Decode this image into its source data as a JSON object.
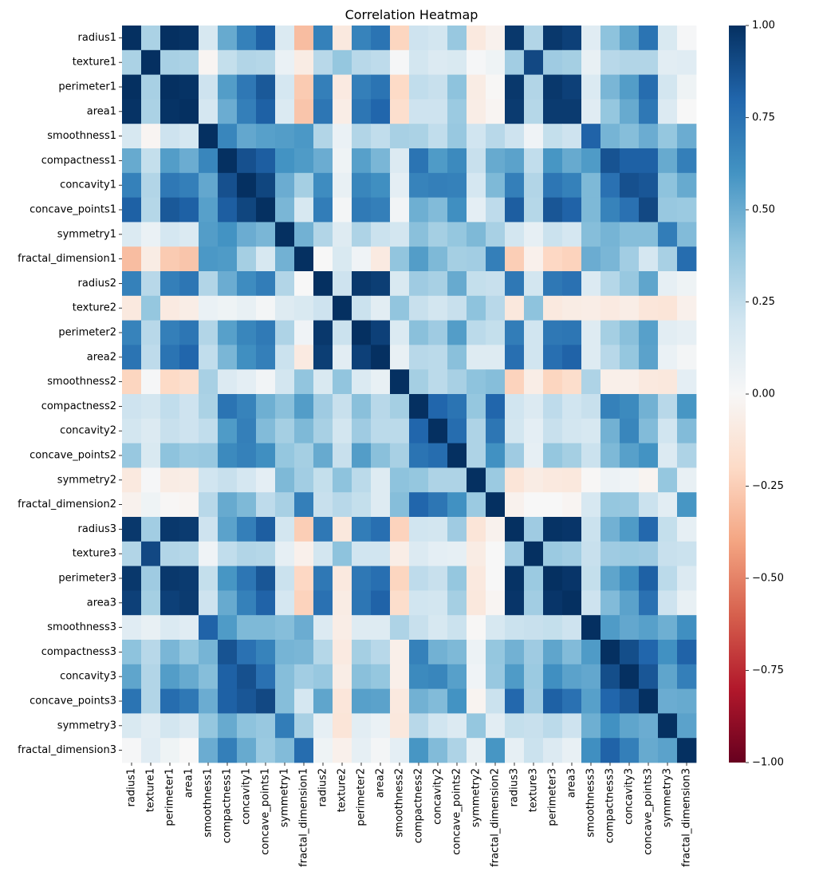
{
  "chart_data": {
    "type": "heatmap",
    "title": "Correlation Heatmap",
    "xlabel": "",
    "ylabel": "",
    "colormap": "RdBu",
    "vmin": -1.0,
    "vmax": 1.0,
    "colorbar_ticks": [
      1.0,
      0.75,
      0.5,
      0.25,
      0.0,
      -0.25,
      -0.5,
      -0.75,
      -1.0
    ],
    "colorbar_tick_labels": [
      "1.00",
      "0.75",
      "0.50",
      "0.25",
      "0.00",
      "−0.25",
      "−0.50",
      "−0.75",
      "−1.00"
    ],
    "labels": [
      "radius1",
      "texture1",
      "perimeter1",
      "area1",
      "smoothness1",
      "compactness1",
      "concavity1",
      "concave_points1",
      "symmetry1",
      "fractal_dimension1",
      "radius2",
      "texture2",
      "perimeter2",
      "area2",
      "smoothness2",
      "compactness2",
      "concavity2",
      "concave_points2",
      "symmetry2",
      "fractal_dimension2",
      "radius3",
      "texture3",
      "perimeter3",
      "area3",
      "smoothness3",
      "compactness3",
      "concavity3",
      "concave_points3",
      "symmetry3",
      "fractal_dimension3"
    ],
    "matrix": [
      [
        1.0,
        0.32,
        1.0,
        0.99,
        0.17,
        0.51,
        0.68,
        0.82,
        0.15,
        -0.31,
        0.68,
        -0.1,
        0.67,
        0.74,
        -0.22,
        0.21,
        0.19,
        0.38,
        -0.1,
        -0.04,
        0.97,
        0.3,
        0.97,
        0.94,
        0.12,
        0.41,
        0.53,
        0.74,
        0.16,
        0.01
      ],
      [
        0.32,
        1.0,
        0.33,
        0.32,
        -0.02,
        0.24,
        0.3,
        0.29,
        0.07,
        -0.08,
        0.28,
        0.39,
        0.28,
        0.26,
        0.01,
        0.19,
        0.14,
        0.16,
        0.01,
        0.05,
        0.35,
        0.91,
        0.36,
        0.34,
        0.08,
        0.28,
        0.3,
        0.3,
        0.11,
        0.12
      ],
      [
        1.0,
        0.33,
        1.0,
        0.99,
        0.21,
        0.56,
        0.72,
        0.85,
        0.18,
        -0.26,
        0.69,
        -0.09,
        0.69,
        0.74,
        -0.2,
        0.25,
        0.23,
        0.41,
        -0.08,
        -0.01,
        0.97,
        0.3,
        0.97,
        0.94,
        0.15,
        0.46,
        0.56,
        0.77,
        0.19,
        0.05
      ],
      [
        0.99,
        0.32,
        0.99,
        1.0,
        0.18,
        0.5,
        0.69,
        0.82,
        0.15,
        -0.28,
        0.73,
        -0.07,
        0.73,
        0.8,
        -0.17,
        0.21,
        0.21,
        0.37,
        -0.07,
        -0.02,
        0.96,
        0.29,
        0.96,
        0.96,
        0.12,
        0.39,
        0.51,
        0.72,
        0.14,
        0.0
      ],
      [
        0.17,
        -0.02,
        0.21,
        0.18,
        1.0,
        0.66,
        0.52,
        0.55,
        0.56,
        0.58,
        0.3,
        0.07,
        0.3,
        0.25,
        0.33,
        0.32,
        0.25,
        0.38,
        0.2,
        0.28,
        0.21,
        0.04,
        0.24,
        0.21,
        0.81,
        0.47,
        0.43,
        0.5,
        0.39,
        0.5
      ],
      [
        0.51,
        0.24,
        0.56,
        0.5,
        0.66,
        1.0,
        0.88,
        0.83,
        0.6,
        0.57,
        0.5,
        0.05,
        0.55,
        0.46,
        0.14,
        0.74,
        0.57,
        0.64,
        0.23,
        0.51,
        0.54,
        0.25,
        0.59,
        0.51,
        0.57,
        0.87,
        0.82,
        0.82,
        0.51,
        0.69
      ],
      [
        0.68,
        0.3,
        0.72,
        0.69,
        0.52,
        0.88,
        1.0,
        0.92,
        0.5,
        0.34,
        0.63,
        0.08,
        0.66,
        0.62,
        0.1,
        0.67,
        0.69,
        0.68,
        0.18,
        0.45,
        0.69,
        0.3,
        0.73,
        0.68,
        0.45,
        0.75,
        0.88,
        0.86,
        0.41,
        0.51
      ],
      [
        0.82,
        0.29,
        0.85,
        0.82,
        0.55,
        0.83,
        0.92,
        1.0,
        0.46,
        0.17,
        0.7,
        0.02,
        0.71,
        0.69,
        0.03,
        0.49,
        0.44,
        0.62,
        0.1,
        0.26,
        0.83,
        0.29,
        0.86,
        0.81,
        0.45,
        0.67,
        0.75,
        0.91,
        0.38,
        0.37
      ],
      [
        0.15,
        0.07,
        0.18,
        0.15,
        0.56,
        0.6,
        0.5,
        0.46,
        1.0,
        0.48,
        0.3,
        0.13,
        0.31,
        0.22,
        0.19,
        0.42,
        0.34,
        0.39,
        0.45,
        0.33,
        0.19,
        0.09,
        0.22,
        0.18,
        0.43,
        0.47,
        0.43,
        0.43,
        0.7,
        0.44
      ],
      [
        -0.31,
        -0.08,
        -0.26,
        -0.28,
        0.58,
        0.57,
        0.34,
        0.17,
        0.48,
        1.0,
        0.0,
        0.16,
        0.04,
        -0.09,
        0.4,
        0.56,
        0.45,
        0.34,
        0.35,
        0.69,
        -0.25,
        -0.05,
        -0.21,
        -0.23,
        0.5,
        0.46,
        0.35,
        0.18,
        0.33,
        0.77
      ],
      [
        0.68,
        0.28,
        0.69,
        0.73,
        0.3,
        0.5,
        0.63,
        0.7,
        0.3,
        0.0,
        1.0,
        0.21,
        0.97,
        0.95,
        0.16,
        0.36,
        0.33,
        0.51,
        0.24,
        0.23,
        0.72,
        0.19,
        0.72,
        0.75,
        0.14,
        0.29,
        0.38,
        0.53,
        0.09,
        0.05
      ],
      [
        -0.1,
        0.39,
        -0.09,
        -0.07,
        0.07,
        0.05,
        0.08,
        0.02,
        0.13,
        0.16,
        0.21,
        1.0,
        0.22,
        0.11,
        0.4,
        0.23,
        0.19,
        0.23,
        0.41,
        0.28,
        -0.11,
        0.41,
        -0.1,
        -0.08,
        -0.07,
        -0.09,
        -0.07,
        -0.12,
        -0.13,
        -0.05
      ],
      [
        0.67,
        0.28,
        0.69,
        0.73,
        0.3,
        0.55,
        0.66,
        0.71,
        0.31,
        0.04,
        0.97,
        0.22,
        1.0,
        0.94,
        0.15,
        0.42,
        0.36,
        0.56,
        0.27,
        0.24,
        0.7,
        0.2,
        0.72,
        0.73,
        0.13,
        0.34,
        0.42,
        0.55,
        0.11,
        0.09
      ],
      [
        0.74,
        0.26,
        0.74,
        0.8,
        0.25,
        0.46,
        0.62,
        0.69,
        0.22,
        -0.09,
        0.95,
        0.11,
        0.94,
        1.0,
        0.08,
        0.28,
        0.27,
        0.42,
        0.13,
        0.13,
        0.76,
        0.2,
        0.76,
        0.81,
        0.13,
        0.28,
        0.39,
        0.54,
        0.07,
        0.02
      ],
      [
        -0.22,
        0.01,
        -0.2,
        -0.17,
        0.33,
        0.14,
        0.1,
        0.03,
        0.19,
        0.4,
        0.16,
        0.4,
        0.15,
        0.08,
        1.0,
        0.34,
        0.27,
        0.33,
        0.41,
        0.43,
        -0.23,
        -0.07,
        -0.22,
        -0.18,
        0.31,
        -0.06,
        -0.06,
        -0.1,
        -0.11,
        0.1
      ],
      [
        0.21,
        0.19,
        0.25,
        0.21,
        0.32,
        0.74,
        0.67,
        0.49,
        0.42,
        0.56,
        0.36,
        0.23,
        0.42,
        0.28,
        0.34,
        1.0,
        0.8,
        0.74,
        0.39,
        0.8,
        0.2,
        0.14,
        0.26,
        0.2,
        0.23,
        0.68,
        0.64,
        0.48,
        0.28,
        0.59
      ],
      [
        0.19,
        0.14,
        0.23,
        0.21,
        0.25,
        0.57,
        0.69,
        0.44,
        0.34,
        0.45,
        0.33,
        0.19,
        0.36,
        0.27,
        0.27,
        0.8,
        1.0,
        0.77,
        0.31,
        0.73,
        0.19,
        0.1,
        0.23,
        0.19,
        0.17,
        0.48,
        0.66,
        0.44,
        0.2,
        0.44
      ],
      [
        0.38,
        0.16,
        0.41,
        0.37,
        0.38,
        0.64,
        0.68,
        0.62,
        0.39,
        0.34,
        0.51,
        0.23,
        0.56,
        0.42,
        0.33,
        0.74,
        0.77,
        1.0,
        0.31,
        0.61,
        0.36,
        0.09,
        0.39,
        0.34,
        0.22,
        0.45,
        0.55,
        0.6,
        0.14,
        0.31
      ],
      [
        -0.1,
        0.01,
        -0.08,
        -0.07,
        0.2,
        0.23,
        0.18,
        0.1,
        0.45,
        0.35,
        0.24,
        0.41,
        0.27,
        0.13,
        0.41,
        0.39,
        0.31,
        0.31,
        1.0,
        0.37,
        -0.13,
        -0.08,
        -0.1,
        -0.11,
        -0.01,
        0.06,
        0.04,
        -0.03,
        0.39,
        0.08
      ],
      [
        -0.04,
        0.05,
        -0.01,
        -0.02,
        0.28,
        0.51,
        0.45,
        0.26,
        0.33,
        0.69,
        0.23,
        0.28,
        0.24,
        0.13,
        0.43,
        0.8,
        0.73,
        0.61,
        0.37,
        1.0,
        -0.04,
        -0.0,
        -0.0,
        -0.02,
        0.17,
        0.39,
        0.38,
        0.22,
        0.11,
        0.59
      ],
      [
        0.97,
        0.35,
        0.97,
        0.96,
        0.21,
        0.54,
        0.69,
        0.83,
        0.19,
        -0.25,
        0.72,
        -0.11,
        0.7,
        0.76,
        -0.23,
        0.2,
        0.19,
        0.36,
        -0.13,
        -0.04,
        1.0,
        0.36,
        0.99,
        0.98,
        0.22,
        0.48,
        0.57,
        0.79,
        0.24,
        0.09
      ],
      [
        0.3,
        0.91,
        0.3,
        0.29,
        0.04,
        0.25,
        0.3,
        0.29,
        0.09,
        -0.05,
        0.19,
        0.41,
        0.2,
        0.2,
        -0.07,
        0.14,
        0.1,
        0.09,
        -0.08,
        -0.0,
        0.36,
        1.0,
        0.37,
        0.35,
        0.23,
        0.36,
        0.37,
        0.36,
        0.23,
        0.22
      ],
      [
        0.97,
        0.36,
        0.97,
        0.96,
        0.24,
        0.59,
        0.73,
        0.86,
        0.22,
        -0.21,
        0.72,
        -0.1,
        0.72,
        0.76,
        -0.22,
        0.26,
        0.23,
        0.39,
        -0.1,
        -0.0,
        0.99,
        0.37,
        1.0,
        0.98,
        0.24,
        0.53,
        0.62,
        0.82,
        0.27,
        0.14
      ],
      [
        0.94,
        0.34,
        0.94,
        0.96,
        0.21,
        0.51,
        0.68,
        0.81,
        0.18,
        -0.23,
        0.75,
        -0.08,
        0.73,
        0.81,
        -0.18,
        0.2,
        0.19,
        0.34,
        -0.11,
        -0.02,
        0.98,
        0.35,
        0.98,
        1.0,
        0.21,
        0.44,
        0.54,
        0.75,
        0.21,
        0.08
      ],
      [
        0.12,
        0.08,
        0.15,
        0.12,
        0.81,
        0.57,
        0.45,
        0.45,
        0.43,
        0.5,
        0.14,
        -0.07,
        0.13,
        0.13,
        0.31,
        0.23,
        0.17,
        0.22,
        -0.01,
        0.17,
        0.22,
        0.23,
        0.24,
        0.21,
        1.0,
        0.57,
        0.52,
        0.55,
        0.49,
        0.62
      ],
      [
        0.41,
        0.28,
        0.46,
        0.39,
        0.47,
        0.87,
        0.75,
        0.67,
        0.47,
        0.46,
        0.29,
        -0.09,
        0.34,
        0.28,
        -0.06,
        0.68,
        0.48,
        0.45,
        0.06,
        0.39,
        0.48,
        0.36,
        0.53,
        0.44,
        0.57,
        1.0,
        0.89,
        0.8,
        0.61,
        0.81
      ],
      [
        0.53,
        0.3,
        0.56,
        0.51,
        0.43,
        0.82,
        0.88,
        0.75,
        0.43,
        0.35,
        0.38,
        -0.07,
        0.42,
        0.39,
        -0.06,
        0.64,
        0.66,
        0.55,
        0.04,
        0.38,
        0.57,
        0.37,
        0.62,
        0.54,
        0.52,
        0.89,
        1.0,
        0.86,
        0.53,
        0.69
      ],
      [
        0.74,
        0.3,
        0.77,
        0.72,
        0.5,
        0.82,
        0.86,
        0.91,
        0.43,
        0.18,
        0.53,
        -0.12,
        0.55,
        0.54,
        -0.1,
        0.48,
        0.44,
        0.6,
        -0.03,
        0.22,
        0.79,
        0.36,
        0.82,
        0.75,
        0.55,
        0.8,
        0.86,
        1.0,
        0.5,
        0.51
      ],
      [
        0.16,
        0.11,
        0.19,
        0.14,
        0.39,
        0.51,
        0.41,
        0.38,
        0.7,
        0.33,
        0.09,
        -0.13,
        0.11,
        0.07,
        -0.11,
        0.28,
        0.2,
        0.14,
        0.39,
        0.11,
        0.24,
        0.23,
        0.27,
        0.21,
        0.49,
        0.61,
        0.53,
        0.5,
        1.0,
        0.54
      ],
      [
        0.01,
        0.12,
        0.05,
        0.0,
        0.5,
        0.69,
        0.51,
        0.37,
        0.44,
        0.77,
        0.05,
        -0.05,
        0.09,
        0.02,
        0.1,
        0.59,
        0.44,
        0.31,
        0.08,
        0.59,
        0.09,
        0.22,
        0.14,
        0.08,
        0.62,
        0.81,
        0.69,
        0.51,
        0.54,
        1.0
      ]
    ]
  }
}
